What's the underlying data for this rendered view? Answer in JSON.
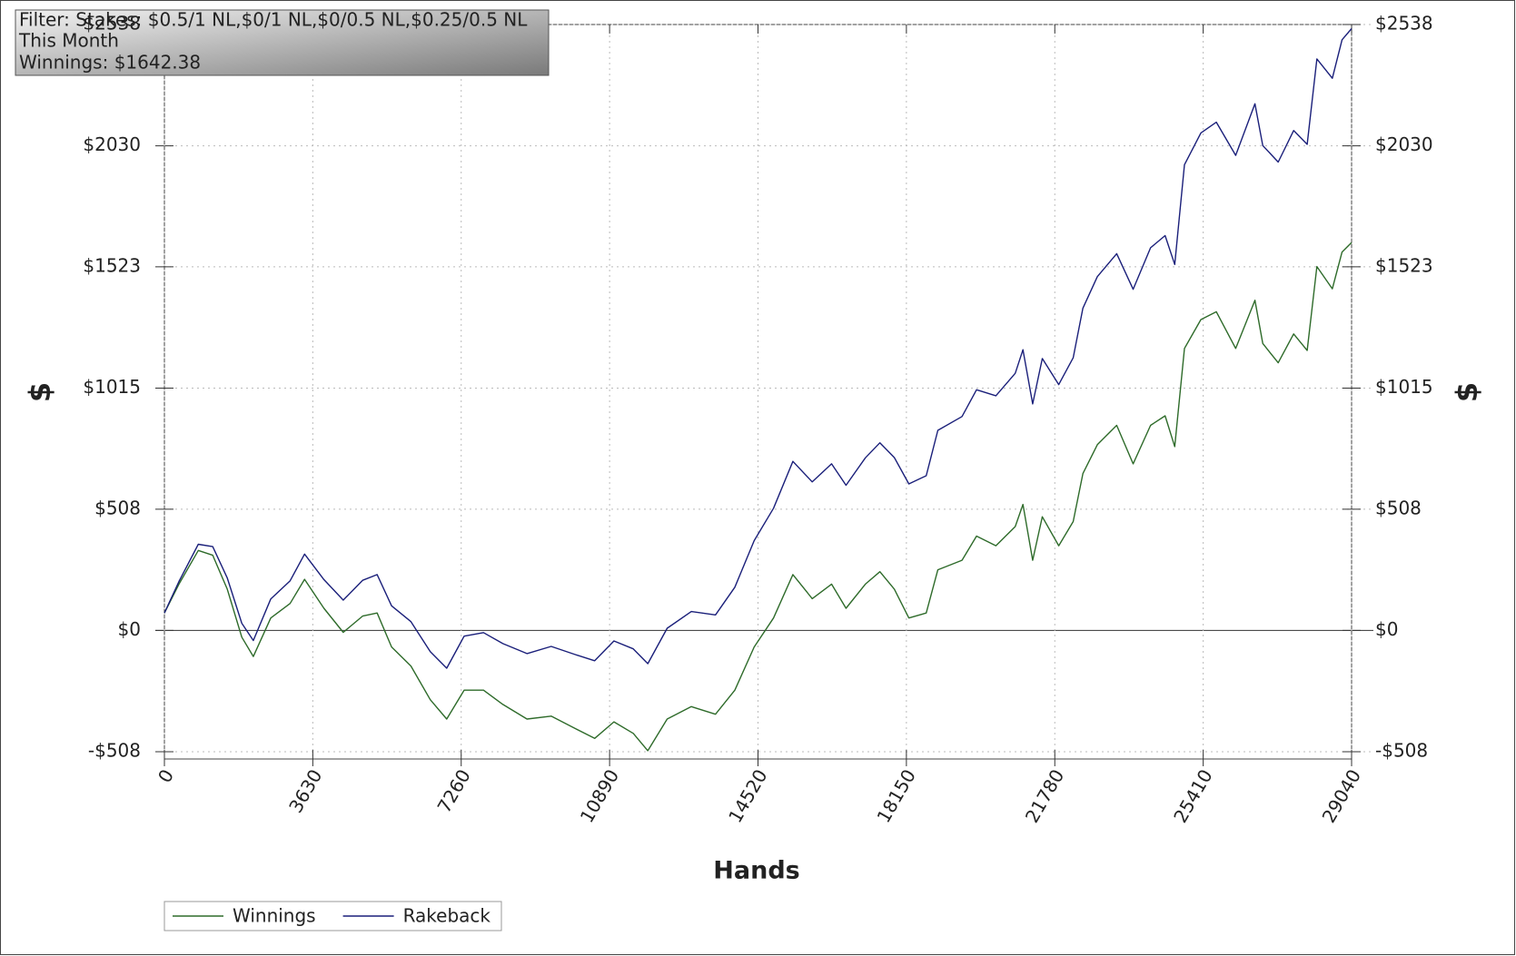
{
  "chart_data": {
    "type": "line",
    "info": [
      "Filter: Stakes: $0.5/1 NL,$0/1 NL,$0/0.5 NL,$0.25/0.5 NL",
      "This Month",
      "Winnings: $1642.38"
    ],
    "xlabel": "Hands",
    "ylabel": "$",
    "y2label": "$",
    "x": [
      0,
      355,
      828,
      1183,
      1537,
      1892,
      2176,
      2602,
      3075,
      3429,
      3902,
      4375,
      4848,
      5203,
      5558,
      6031,
      6504,
      6906,
      7332,
      7805,
      8278,
      8869,
      9460,
      10051,
      10524,
      10997,
      11470,
      11825,
      12298,
      12889,
      13481,
      13954,
      14427,
      14900,
      15373,
      15846,
      16319,
      16673,
      17146,
      17501,
      17856,
      18210,
      18636,
      18920,
      19511,
      19866,
      20339,
      20812,
      21001,
      21238,
      21474,
      21876,
      22231,
      22468,
      22822,
      23295,
      23697,
      24123,
      24478,
      24714,
      24951,
      25353,
      25732,
      26204,
      26677,
      26867,
      27245,
      27623,
      27954,
      28191,
      28569,
      28806,
      29040
    ],
    "series": [
      {
        "name": "Winnings",
        "color": "#2e6b2a",
        "values": [
          73,
          194,
          335,
          315,
          173,
          -28,
          -109,
          52,
          113,
          214,
          93,
          -8,
          60,
          73,
          -69,
          -149,
          -290,
          -371,
          -250,
          -250,
          -310,
          -371,
          -359,
          -411,
          -452,
          -383,
          -431,
          -504,
          -371,
          -319,
          -351,
          -250,
          -69,
          52,
          234,
          133,
          194,
          93,
          194,
          246,
          173,
          52,
          73,
          254,
          294,
          395,
          355,
          435,
          528,
          294,
          476,
          355,
          456,
          657,
          778,
          859,
          698,
          859,
          899,
          770,
          1181,
          1302,
          1335,
          1181,
          1383,
          1202,
          1121,
          1242,
          1173,
          1524,
          1431,
          1585,
          1625
        ]
      },
      {
        "name": "Rakeback",
        "color": "#1a1f7a",
        "values": [
          73,
          205,
          361,
          351,
          220,
          30,
          -42,
          132,
          208,
          320,
          213,
          127,
          210,
          234,
          103,
          37,
          -89,
          -158,
          -24,
          -9,
          -55,
          -97,
          -67,
          -101,
          -127,
          -44,
          -77,
          -139,
          9,
          79,
          65,
          181,
          376,
          512,
          708,
          622,
          698,
          608,
          723,
          786,
          724,
          614,
          648,
          838,
          896,
          1008,
          983,
          1077,
          1176,
          949,
          1139,
          1030,
          1142,
          1350,
          1482,
          1578,
          1429,
          1603,
          1654,
          1533,
          1951,
          2084,
          2129,
          1990,
          2206,
          2031,
          1962,
          2094,
          2036,
          2394,
          2313,
          2474,
          2521
        ]
      }
    ],
    "xlim": [
      0,
      29040
    ],
    "xticks": [
      0,
      3630,
      7260,
      10890,
      14520,
      18150,
      21780,
      25410,
      29040
    ],
    "ylim": [
      -508,
      2538
    ],
    "yticks": [
      {
        "value": -508,
        "label": "-$508"
      },
      {
        "value": 0,
        "label": "$0"
      },
      {
        "value": 508,
        "label": "$508"
      },
      {
        "value": 1015,
        "label": "$1015"
      },
      {
        "value": 1523,
        "label": "$1523"
      },
      {
        "value": 2030,
        "label": "$2030"
      },
      {
        "value": 2538,
        "label": "$2538"
      }
    ],
    "y2lim": [
      -508,
      2538
    ],
    "y2ticks": [
      {
        "value": -508,
        "label": "-$508"
      },
      {
        "value": 0,
        "label": "$0"
      },
      {
        "value": 508,
        "label": "$508"
      },
      {
        "value": 1015,
        "label": "$1015"
      },
      {
        "value": 1523,
        "label": "$1523"
      },
      {
        "value": 2030,
        "label": "$2030"
      },
      {
        "value": 2538,
        "label": "$2538"
      }
    ],
    "grid": true,
    "legend": "bottom-left"
  }
}
